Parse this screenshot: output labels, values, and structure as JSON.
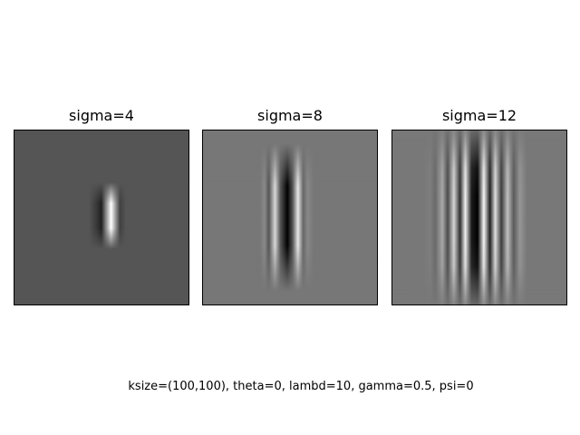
{
  "figure": {
    "caption": "ksize=(100,100), theta=0, lambd=10, gamma=0.5, psi=0",
    "background": "#ffffff",
    "colormap": "gray",
    "panels": [
      {
        "title": "sigma=4"
      },
      {
        "title": "sigma=8"
      },
      {
        "title": "sigma=12"
      }
    ]
  }
}
